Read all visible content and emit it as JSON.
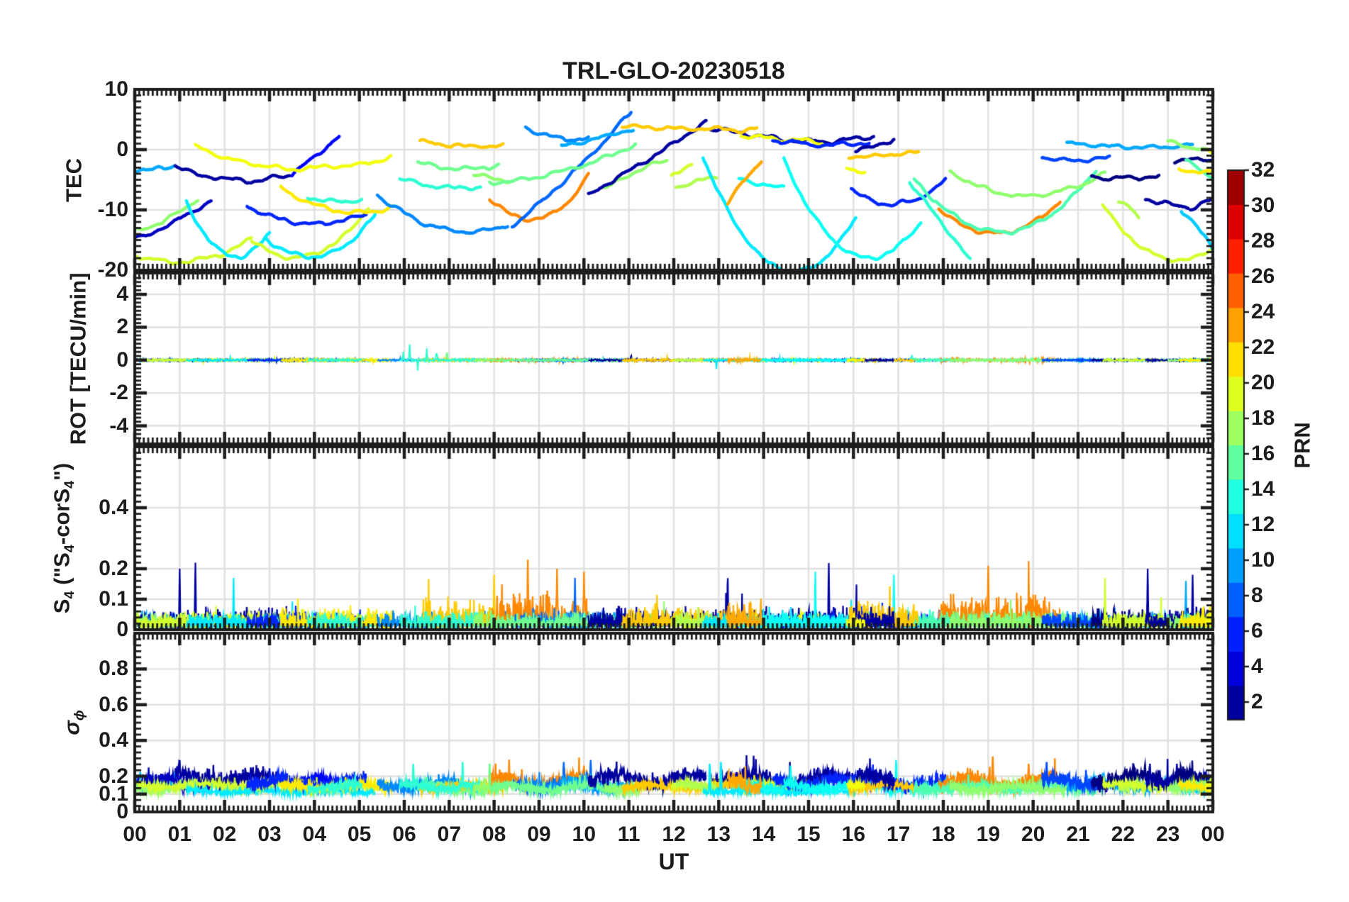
{
  "chart_data": {
    "type": "line",
    "title": "TRL-GLO-20230518",
    "xlabel": "UT",
    "x_range_hours": [
      0,
      24
    ],
    "x_hour_labels": [
      "00",
      "01",
      "02",
      "03",
      "04",
      "05",
      "06",
      "07",
      "08",
      "09",
      "10",
      "11",
      "12",
      "13",
      "14",
      "15",
      "16",
      "17",
      "18",
      "19",
      "20",
      "21",
      "22",
      "23",
      "00"
    ],
    "grid": "on",
    "colorbar": {
      "label": "PRN",
      "colormap": "jet",
      "caxis": [
        1,
        32
      ],
      "n_bands": 16,
      "tick_values": [
        2,
        4,
        6,
        8,
        10,
        12,
        14,
        16,
        18,
        20,
        22,
        24,
        26,
        28,
        30,
        32
      ],
      "tick_labels": [
        "2",
        "4",
        "6",
        "8",
        "10",
        "12",
        "14",
        "16",
        "18",
        "20",
        "22",
        "24",
        "26",
        "28",
        "30",
        "32"
      ]
    },
    "panels": [
      {
        "id": "tec",
        "ylabel_parts": [
          {
            "text": "TEC"
          }
        ],
        "ylim": [
          -20,
          10
        ],
        "ytick_values": [
          10,
          0,
          -10,
          -20
        ],
        "ytick_labels": [
          "10",
          "0",
          "-10",
          "-20"
        ],
        "grid_values": [
          0,
          -10
        ],
        "minor_step": 1
      },
      {
        "id": "rot",
        "ylabel_parts": [
          {
            "text": "ROT [TECU/min]"
          }
        ],
        "ylim": [
          -5.1,
          5.3
        ],
        "ytick_values": [
          4,
          2,
          0,
          -2,
          -4
        ],
        "ytick_labels": [
          "4",
          "2",
          "0",
          "-2",
          "-4"
        ],
        "grid_values": [
          4,
          2,
          0,
          -2,
          -4
        ],
        "minor_step": 0.25
      },
      {
        "id": "s4",
        "ylabel_parts": [
          {
            "text": "S"
          },
          {
            "text": "4",
            "sub": true
          },
          {
            "text": " (\"S"
          },
          {
            "text": "4",
            "sub": true
          },
          {
            "text": "-corS"
          },
          {
            "text": "4",
            "sub": true
          },
          {
            "text": "\")"
          }
        ],
        "ylim": [
          0,
          0.6
        ],
        "ytick_values": [
          0.4,
          0.2,
          0.1,
          0
        ],
        "ytick_labels": [
          "0.4",
          "0.2",
          "0.1",
          "0"
        ],
        "grid_values": [
          0.4,
          0.2,
          0.1
        ],
        "minor_step": 0.02
      },
      {
        "id": "sigma_phi",
        "ylabel_parts": [
          {
            "text": "σ",
            "italic": true
          },
          {
            "text": "ϕ",
            "sub": true,
            "italic": true
          }
        ],
        "ylim": [
          0,
          1
        ],
        "ytick_values": [
          0.8,
          0.6,
          0.4,
          0.2,
          0.1,
          0
        ],
        "ytick_labels": [
          "0.8",
          "0.6",
          "0.4",
          "0.2",
          "0.1",
          "0"
        ],
        "grid_values": [
          0.8,
          0.6,
          0.4,
          0.2,
          0.1
        ],
        "minor_step": 0.0333
      }
    ],
    "tec_arcs": [
      [
        10,
        0.0,
        0.9,
        -3.4,
        -3.2,
        -2.5,
        0.5
      ],
      [
        2,
        0.9,
        3.45,
        -2.6,
        -5.3,
        -4.4,
        0.55
      ],
      [
        5,
        3.5,
        4.55,
        -4.2,
        -1.0,
        2.0,
        0.5
      ],
      [
        20,
        1.35,
        5.7,
        0.6,
        -2.8,
        -1.0,
        0.42
      ],
      [
        3,
        0.0,
        1.7,
        -14.7,
        -12.4,
        -8.6,
        0.45
      ],
      [
        17,
        0.0,
        1.4,
        -13.5,
        -11.6,
        -8.3,
        0.5
      ],
      [
        19,
        0.05,
        2.6,
        -17.5,
        -18.5,
        -15.0,
        0.45
      ],
      [
        12,
        1.15,
        3.0,
        -8.7,
        -17.8,
        -14.2,
        0.62
      ],
      [
        19,
        2.6,
        5.2,
        -15.0,
        -17.9,
        -9.6,
        0.42
      ],
      [
        12,
        2.9,
        5.35,
        -14.6,
        -17.5,
        -11.2,
        0.5
      ],
      [
        6,
        2.5,
        5.15,
        -9.2,
        -12.5,
        -10.8,
        0.5
      ],
      [
        21,
        3.25,
        5.75,
        -6.2,
        -10.7,
        -9.7,
        0.58
      ],
      [
        14,
        3.85,
        5.05,
        -7.9,
        -8.8,
        -8.2,
        0.5
      ],
      [
        9,
        5.4,
        8.3,
        -7.4,
        -13.6,
        -12.4,
        0.6
      ],
      [
        16,
        6.3,
        8.1,
        -2.2,
        -3.2,
        -2.8,
        0.5
      ],
      [
        22,
        6.35,
        8.2,
        1.4,
        1.0,
        0.8,
        0.5
      ],
      [
        14,
        5.9,
        7.7,
        -4.8,
        -6.3,
        -6.1,
        0.55
      ],
      [
        17,
        7.55,
        8.3,
        -4.2,
        -4.8,
        -5.3,
        0.5
      ],
      [
        24,
        7.9,
        10.1,
        -8.1,
        -11.7,
        -4.6,
        0.38
      ],
      [
        8,
        8.4,
        11.05,
        -12.6,
        -4.0,
        6.6,
        0.5
      ],
      [
        9,
        8.7,
        10.1,
        3.8,
        1.7,
        2.0,
        0.6
      ],
      [
        10,
        9.5,
        11.1,
        0.6,
        1.9,
        3.4,
        0.5
      ],
      [
        16,
        7.9,
        11.15,
        -5.5,
        -3.7,
        1.1,
        0.45
      ],
      [
        17,
        10.45,
        11.85,
        -6.4,
        -3.1,
        -1.8,
        0.6
      ],
      [
        2,
        10.1,
        12.72,
        -7.6,
        -1.6,
        4.6,
        0.5
      ],
      [
        2,
        12.82,
        16.45,
        3.4,
        1.9,
        2.3,
        0.4
      ],
      [
        22,
        10.85,
        13.85,
        3.9,
        3.4,
        3.6,
        0.5
      ],
      [
        19,
        11.95,
        12.4,
        -4.6,
        -3.4,
        -2.2,
        0.5
      ],
      [
        18,
        12.05,
        12.95,
        -6.3,
        -5.4,
        -4.7,
        0.5
      ],
      [
        20,
        13.5,
        15.3,
        2.3,
        1.8,
        1.2,
        0.5
      ],
      [
        6,
        14.2,
        16.35,
        1.6,
        0.9,
        1.1,
        0.5
      ],
      [
        12,
        12.65,
        16.05,
        -1.2,
        -19.2,
        -11.4,
        0.48
      ],
      [
        13,
        14.45,
        17.5,
        -1.6,
        -17.6,
        -12.2,
        0.56
      ],
      [
        13,
        13.45,
        14.45,
        -4.9,
        -5.6,
        -6.1,
        0.5
      ],
      [
        23,
        13.2,
        13.95,
        -9.0,
        -5.0,
        -1.6,
        0.5
      ],
      [
        6,
        15.95,
        18.05,
        -6.5,
        -9.1,
        -5.0,
        0.55
      ],
      [
        14,
        17.25,
        18.6,
        -5.3,
        -12.0,
        -18.5,
        0.5
      ],
      [
        22,
        15.9,
        17.45,
        -1.1,
        -0.8,
        -0.4,
        0.5
      ],
      [
        2,
        16.05,
        16.9,
        -0.3,
        0.6,
        1.5,
        0.5
      ],
      [
        20,
        15.85,
        16.25,
        -2.8,
        -3.2,
        -3.6,
        0.5
      ],
      [
        24,
        17.9,
        20.6,
        -9.8,
        -14.2,
        -8.3,
        0.45
      ],
      [
        15,
        17.35,
        21.4,
        -5.0,
        -13.6,
        -3.6,
        0.48
      ],
      [
        17,
        18.15,
        21.6,
        -3.7,
        -7.5,
        -3.8,
        0.5
      ],
      [
        10,
        20.75,
        23.55,
        0.9,
        0.3,
        0.6,
        0.5
      ],
      [
        7,
        20.2,
        21.7,
        -1.2,
        -1.7,
        -1.3,
        0.5
      ],
      [
        1,
        21.3,
        22.8,
        -4.3,
        -4.8,
        -4.5,
        0.5
      ],
      [
        18,
        21.9,
        22.35,
        -8.8,
        -9.6,
        -11.4,
        0.5
      ],
      [
        19,
        21.55,
        24.0,
        -9.2,
        -18.4,
        -16.3,
        0.62
      ],
      [
        2,
        22.5,
        23.45,
        -8.1,
        -9.0,
        -9.8,
        0.5
      ],
      [
        2,
        23.5,
        24.0,
        -9.7,
        -8.9,
        -8.2,
        0.5
      ],
      [
        1,
        23.15,
        24.0,
        -1.9,
        -1.8,
        -1.6,
        0.5
      ],
      [
        11,
        23.3,
        24.0,
        -10.0,
        -13.6,
        -17.0,
        0.6
      ],
      [
        15,
        23.4,
        24.0,
        -2.0,
        -3.2,
        -4.7,
        0.5
      ],
      [
        17,
        23.0,
        24.0,
        1.3,
        0.6,
        -0.2,
        0.5
      ],
      [
        21,
        23.25,
        24.0,
        -3.3,
        -3.8,
        -4.3,
        0.5
      ],
      [
        20,
        23.85,
        24.0,
        -0.1,
        -0.4,
        -0.6,
        0.5
      ]
    ],
    "rot": {
      "spikes": [
        [
          2,
          4.45,
          0.95,
          0.012
        ],
        [
          14,
          5.98,
          0.6,
          0.01
        ],
        [
          14,
          6.12,
          1.3,
          0.012
        ],
        [
          14,
          6.3,
          -0.7,
          0.01
        ],
        [
          14,
          6.5,
          0.95,
          0.012
        ],
        [
          14,
          6.72,
          0.6,
          0.015
        ],
        [
          16,
          6.95,
          0.45,
          0.02
        ],
        [
          2,
          11.05,
          0.4,
          0.008
        ],
        [
          12,
          12.95,
          -0.55,
          0.01
        ],
        [
          14,
          17.3,
          0.5,
          0.01
        ]
      ]
    },
    "s4": {
      "burst_windows": [
        [
          6.3,
          10.6
        ],
        [
          14.6,
          20.7
        ]
      ],
      "spikes": [
        [
          2,
          1.0,
          0.2
        ],
        [
          2,
          1.35,
          0.22
        ],
        [
          12,
          2.2,
          0.17
        ],
        [
          2,
          4.4,
          0.16
        ],
        [
          22,
          8.0,
          0.18
        ],
        [
          24,
          8.75,
          0.23
        ],
        [
          24,
          9.4,
          0.2
        ],
        [
          24,
          10.0,
          0.19
        ],
        [
          8,
          9.8,
          0.17
        ],
        [
          2,
          13.2,
          0.18
        ],
        [
          2,
          15.45,
          0.22
        ],
        [
          13,
          15.15,
          0.19
        ],
        [
          13,
          16.9,
          0.18
        ],
        [
          24,
          19.0,
          0.21
        ],
        [
          19,
          21.6,
          0.17
        ],
        [
          2,
          22.55,
          0.2
        ],
        [
          2,
          23.55,
          0.18
        ],
        [
          10,
          23.4,
          0.16
        ]
      ]
    },
    "sigma": {
      "bands": [
        {
          "prn_max": 2,
          "center": 0.185,
          "amp": 0.05
        },
        {
          "prn_max": 7,
          "center": 0.165,
          "amp": 0.042
        },
        {
          "prn_max": 10,
          "center": 0.15,
          "amp": 0.035
        },
        {
          "prn_max": 12,
          "center": 0.115,
          "amp": 0.014
        },
        {
          "prn_max": 14,
          "center": 0.14,
          "amp": 0.03
        },
        {
          "prn_max": 17,
          "center": 0.135,
          "amp": 0.028
        },
        {
          "prn_max": 19,
          "center": 0.148,
          "amp": 0.022
        },
        {
          "prn_max": 22,
          "center": 0.142,
          "amp": 0.022
        },
        {
          "prn_max": 32,
          "center": 0.165,
          "amp": 0.05
        }
      ],
      "spikes": [
        [
          2,
          1.0,
          0.29
        ],
        [
          14,
          6.2,
          0.27
        ],
        [
          14,
          7.3,
          0.28
        ],
        [
          16,
          7.9,
          0.27
        ],
        [
          8,
          9.55,
          0.28
        ],
        [
          8,
          10.15,
          0.29
        ],
        [
          24,
          10.0,
          0.26
        ],
        [
          12,
          12.8,
          0.27
        ],
        [
          12,
          13.05,
          0.28
        ],
        [
          13,
          14.6,
          0.26
        ],
        [
          13,
          16.95,
          0.29
        ],
        [
          24,
          19.1,
          0.31
        ],
        [
          24,
          19.9,
          0.27
        ],
        [
          7,
          20.3,
          0.28
        ],
        [
          2,
          22.6,
          0.27
        ],
        [
          2,
          23.2,
          0.27
        ]
      ]
    }
  }
}
